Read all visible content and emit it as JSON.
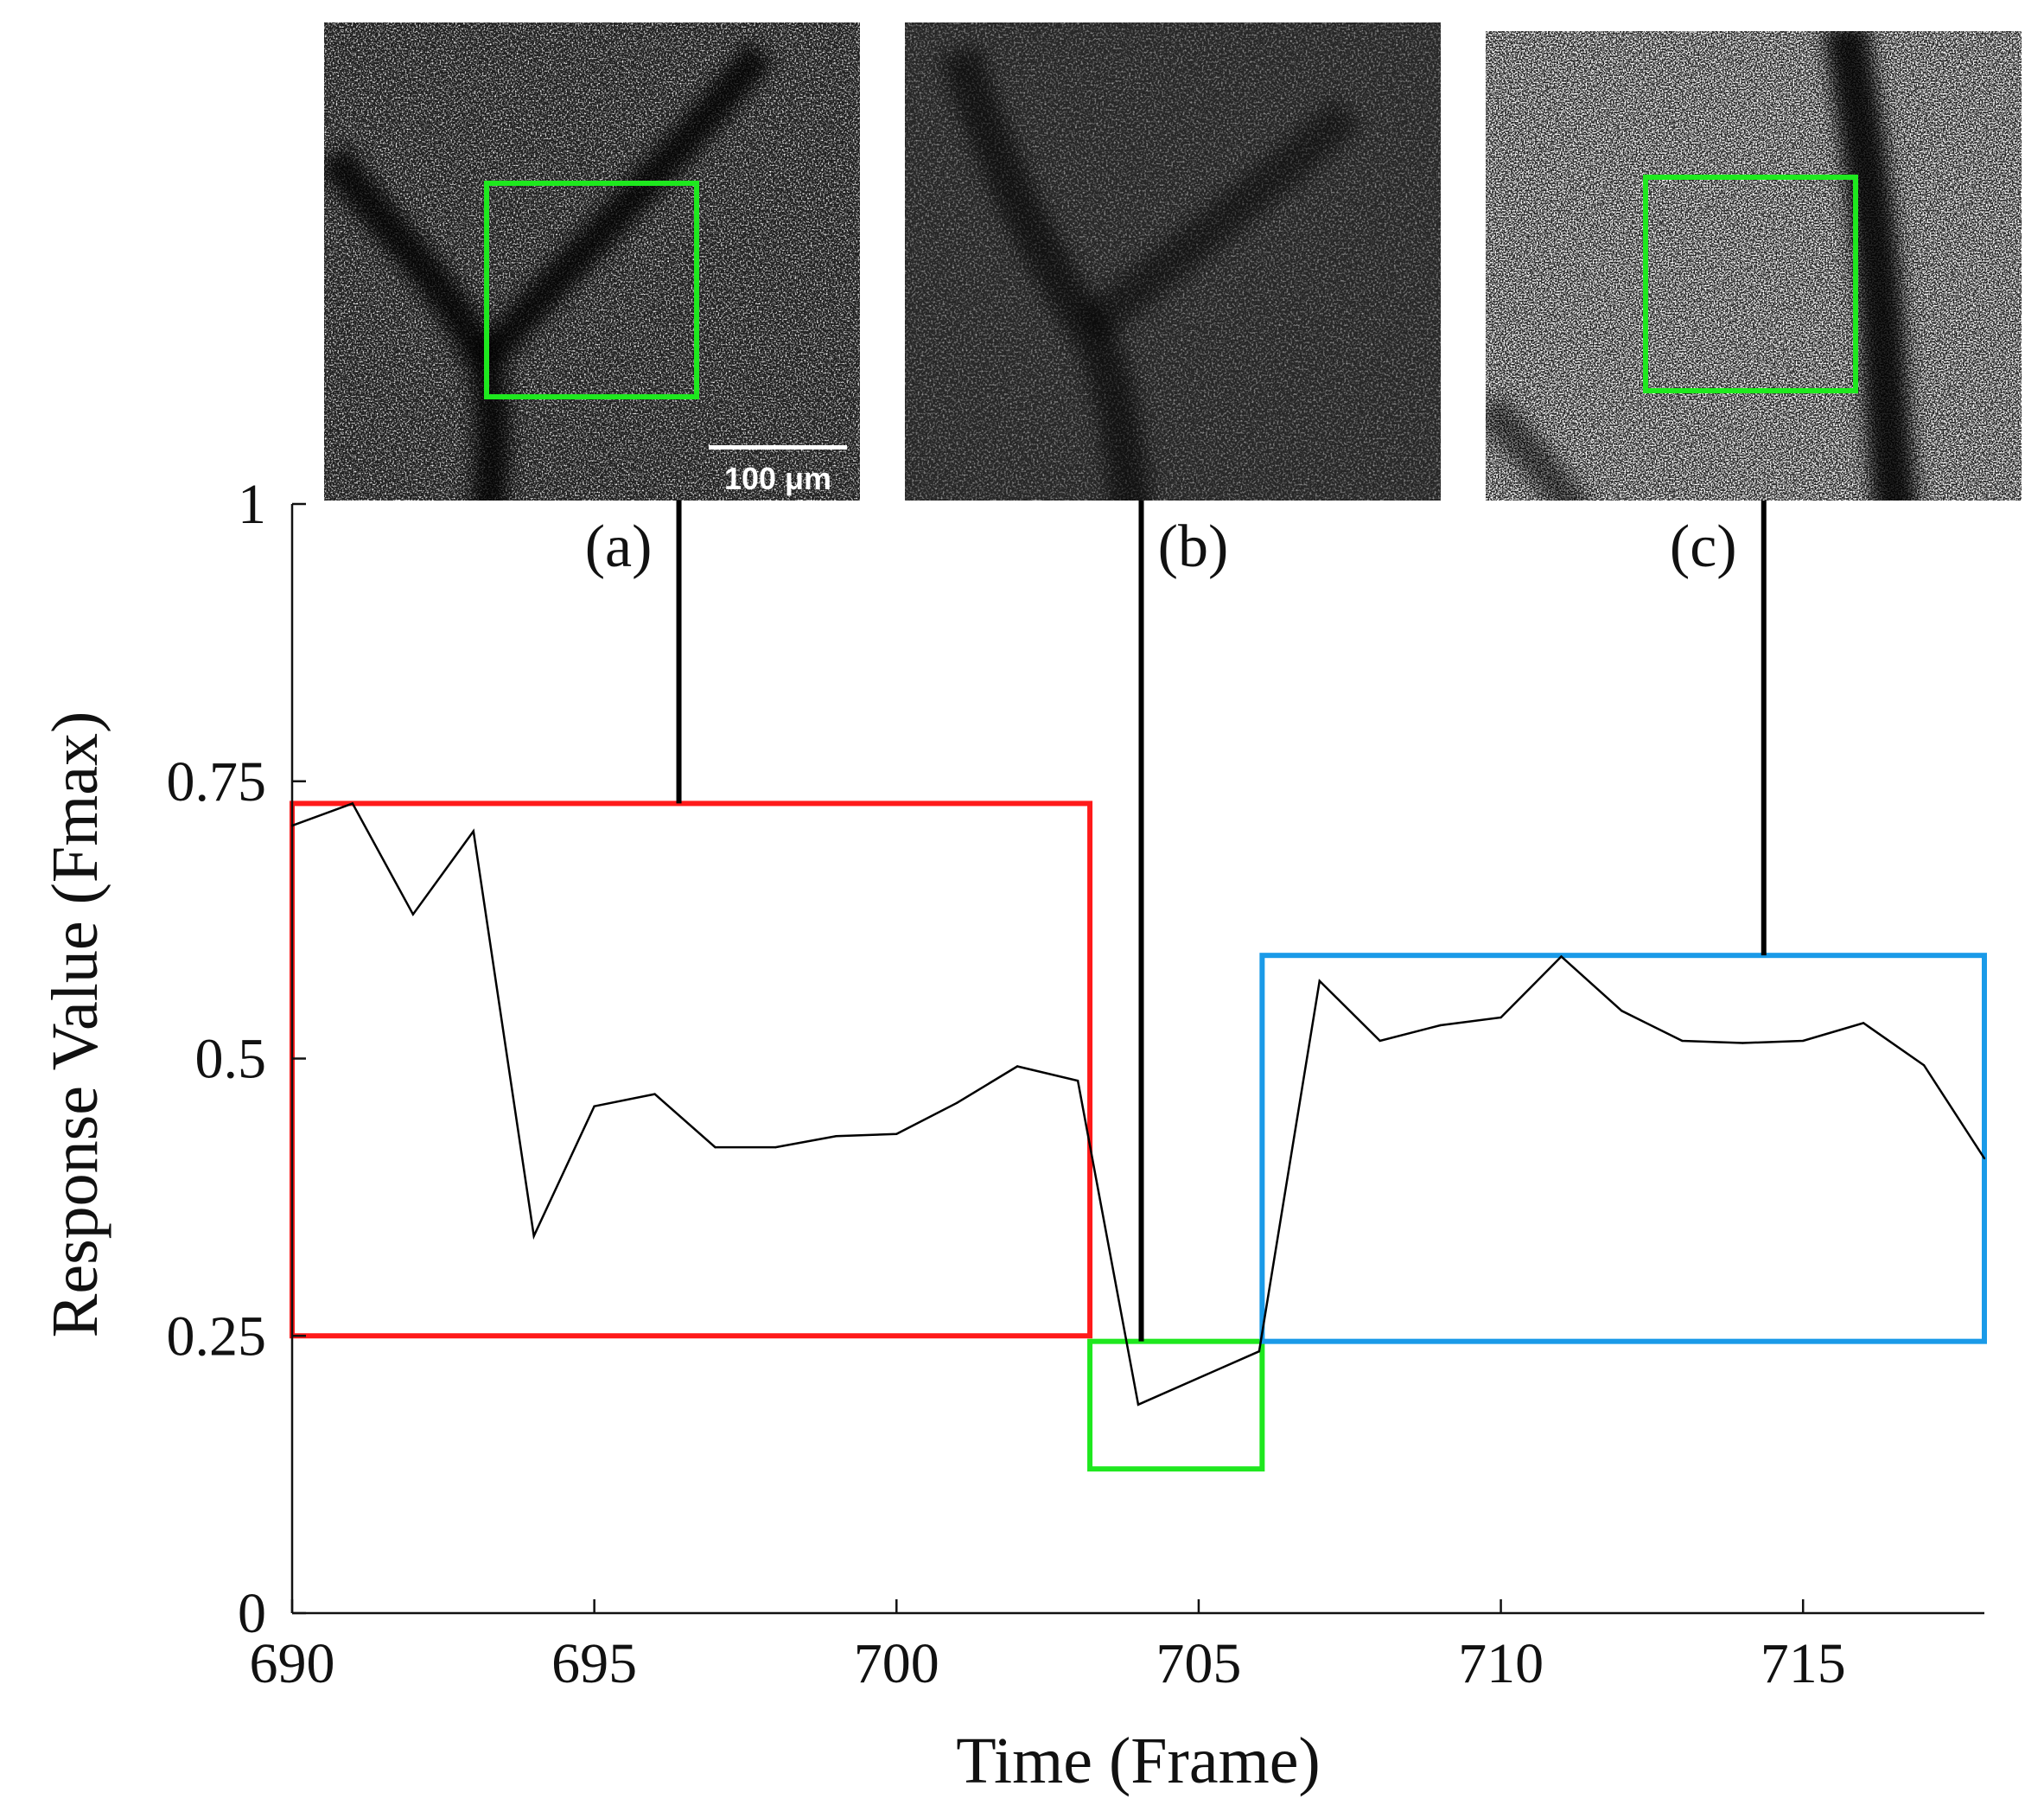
{
  "chart_data": {
    "type": "line",
    "title": "",
    "xlabel": "Time (Frame)",
    "ylabel": "Response Value (Fmax)",
    "xlim": [
      690,
      718
    ],
    "ylim": [
      0,
      1
    ],
    "xticks": [
      690,
      695,
      700,
      705,
      710,
      715
    ],
    "xtick_labels": [
      "690",
      "695",
      "700",
      "705",
      "710",
      "715"
    ],
    "yticks": [
      0,
      0.25,
      0.5,
      0.75,
      1
    ],
    "ytick_labels": [
      "0",
      "0.25",
      "0.5",
      "0.75",
      "1"
    ],
    "grid": false,
    "series": [
      {
        "name": "response",
        "color": "#000000",
        "x": [
          690,
          691,
          692,
          693,
          694,
          695,
          696,
          697,
          698,
          699,
          700,
          701,
          702,
          703,
          704,
          705,
          706,
          707,
          708,
          709,
          710,
          711,
          712,
          713,
          714,
          715,
          716,
          717,
          718
        ],
        "y": [
          0.71,
          0.73,
          0.63,
          0.705,
          0.34,
          0.457,
          0.468,
          0.42,
          0.42,
          0.43,
          0.432,
          0.46,
          0.493,
          0.48,
          0.188,
          0.212,
          0.236,
          0.57,
          0.516,
          0.53,
          0.537,
          0.592,
          0.543,
          0.516,
          0.514,
          0.516,
          0.532,
          0.494,
          0.41
        ]
      }
    ],
    "regions": [
      {
        "name": "(a)",
        "color": "#ff1a1a",
        "x_range": [
          690,
          703.2
        ],
        "y_range": [
          0.25,
          0.73
        ],
        "leader_x": 696.4
      },
      {
        "name": "(b)",
        "color": "#1ee81e",
        "x_range": [
          703.2,
          706.05
        ],
        "y_range": [
          0.13,
          0.245
        ],
        "leader_x": 704.05
      },
      {
        "name": "(c)",
        "color": "#1a9ae8",
        "x_range": [
          706.05,
          718
        ],
        "y_range": [
          0.245,
          0.593
        ],
        "leader_x": 714.35
      }
    ],
    "annotations": [
      "(a)",
      "(b)",
      "(c)"
    ]
  },
  "panels": [
    {
      "label": "(a)",
      "scale_bar_label": "100 μm"
    },
    {
      "label": "(b)"
    },
    {
      "label": "(c)"
    }
  ],
  "colors": {
    "roi_green": "#1ee81e",
    "axis": "#111111",
    "line": "#000000"
  }
}
